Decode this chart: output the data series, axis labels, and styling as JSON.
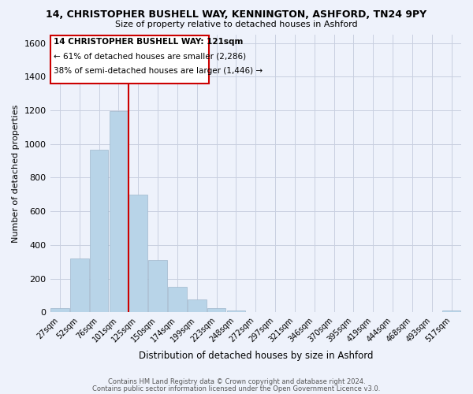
{
  "title": "14, CHRISTOPHER BUSHELL WAY, KENNINGTON, ASHFORD, TN24 9PY",
  "subtitle": "Size of property relative to detached houses in Ashford",
  "xlabel": "Distribution of detached houses by size in Ashford",
  "ylabel": "Number of detached properties",
  "bar_labels": [
    "27sqm",
    "52sqm",
    "76sqm",
    "101sqm",
    "125sqm",
    "150sqm",
    "174sqm",
    "199sqm",
    "223sqm",
    "248sqm",
    "272sqm",
    "297sqm",
    "321sqm",
    "346sqm",
    "370sqm",
    "395sqm",
    "419sqm",
    "444sqm",
    "468sqm",
    "493sqm",
    "517sqm"
  ],
  "bar_values": [
    27,
    320,
    968,
    1198,
    700,
    310,
    150,
    75,
    27,
    10,
    3,
    2,
    1,
    0,
    0,
    0,
    0,
    0,
    0,
    0,
    12
  ],
  "bar_color": "#b8d4e8",
  "highlight_color": "#cc0000",
  "vline_x": 3.5,
  "annotation_title": "14 CHRISTOPHER BUSHELL WAY: 121sqm",
  "annotation_line1": "← 61% of detached houses are smaller (2,286)",
  "annotation_line2": "38% of semi-detached houses are larger (1,446) →",
  "ylim": [
    0,
    1650
  ],
  "yticks": [
    0,
    200,
    400,
    600,
    800,
    1000,
    1200,
    1400,
    1600
  ],
  "footer1": "Contains HM Land Registry data © Crown copyright and database right 2024.",
  "footer2": "Contains public sector information licensed under the Open Government Licence v3.0.",
  "bg_color": "#eef2fb",
  "plot_bg_color": "#eef2fb",
  "grid_color": "#c8cfe0"
}
